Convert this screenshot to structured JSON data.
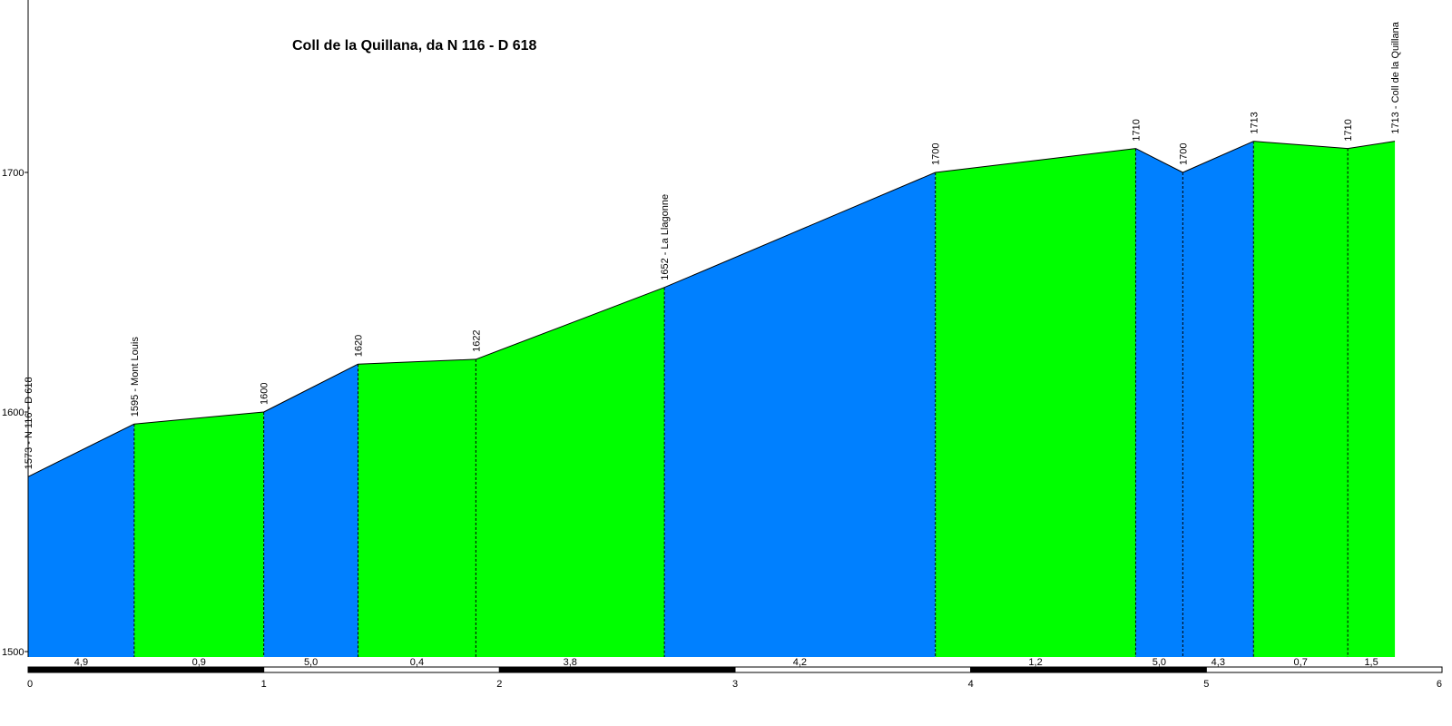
{
  "chart_data": {
    "type": "area",
    "title": "Coll de la Quillana, da N 116 - D 618",
    "xlim": [
      0,
      6
    ],
    "ylim": [
      1500,
      1720
    ],
    "x_ticks": [
      "0",
      "1",
      "2",
      "3",
      "4",
      "5",
      "6"
    ],
    "y_ticks": [
      "1500",
      "1600",
      "1700"
    ],
    "points": [
      {
        "x": 0.0,
        "y": 1573,
        "label": "1573 - N 116 - D 618"
      },
      {
        "x": 0.45,
        "y": 1595,
        "label": "1595 - Mont Louis"
      },
      {
        "x": 1.0,
        "y": 1600,
        "label": "1600"
      },
      {
        "x": 1.4,
        "y": 1620,
        "label": "1620"
      },
      {
        "x": 1.9,
        "y": 1622,
        "label": "1622"
      },
      {
        "x": 2.7,
        "y": 1652,
        "label": "1652 - La Llagonne"
      },
      {
        "x": 3.85,
        "y": 1700,
        "label": "1700"
      },
      {
        "x": 4.7,
        "y": 1710,
        "label": "1710"
      },
      {
        "x": 4.9,
        "y": 1700,
        "label": "1700"
      },
      {
        "x": 5.2,
        "y": 1713,
        "label": "1713"
      },
      {
        "x": 5.6,
        "y": 1710,
        "label": "1710"
      },
      {
        "x": 5.8,
        "y": 1713,
        "label": "1713 - Coll de la Quillana"
      }
    ],
    "segments": [
      {
        "gradient": "4,9",
        "color": "#0080ff"
      },
      {
        "gradient": "0,9",
        "color": "#00ff00"
      },
      {
        "gradient": "5,0",
        "color": "#0080ff"
      },
      {
        "gradient": "0,4",
        "color": "#00ff00"
      },
      {
        "gradient": "3,8",
        "color": "#00ff00"
      },
      {
        "gradient": "4,2",
        "color": "#0080ff"
      },
      {
        "gradient": "1,2",
        "color": "#00ff00"
      },
      {
        "gradient": "5,0",
        "color": "#0080ff"
      },
      {
        "gradient": "4,3",
        "color": "#0080ff"
      },
      {
        "gradient": "0,7",
        "color": "#00ff00"
      },
      {
        "gradient": "1,5",
        "color": "#00ff00"
      }
    ],
    "grid": false
  }
}
